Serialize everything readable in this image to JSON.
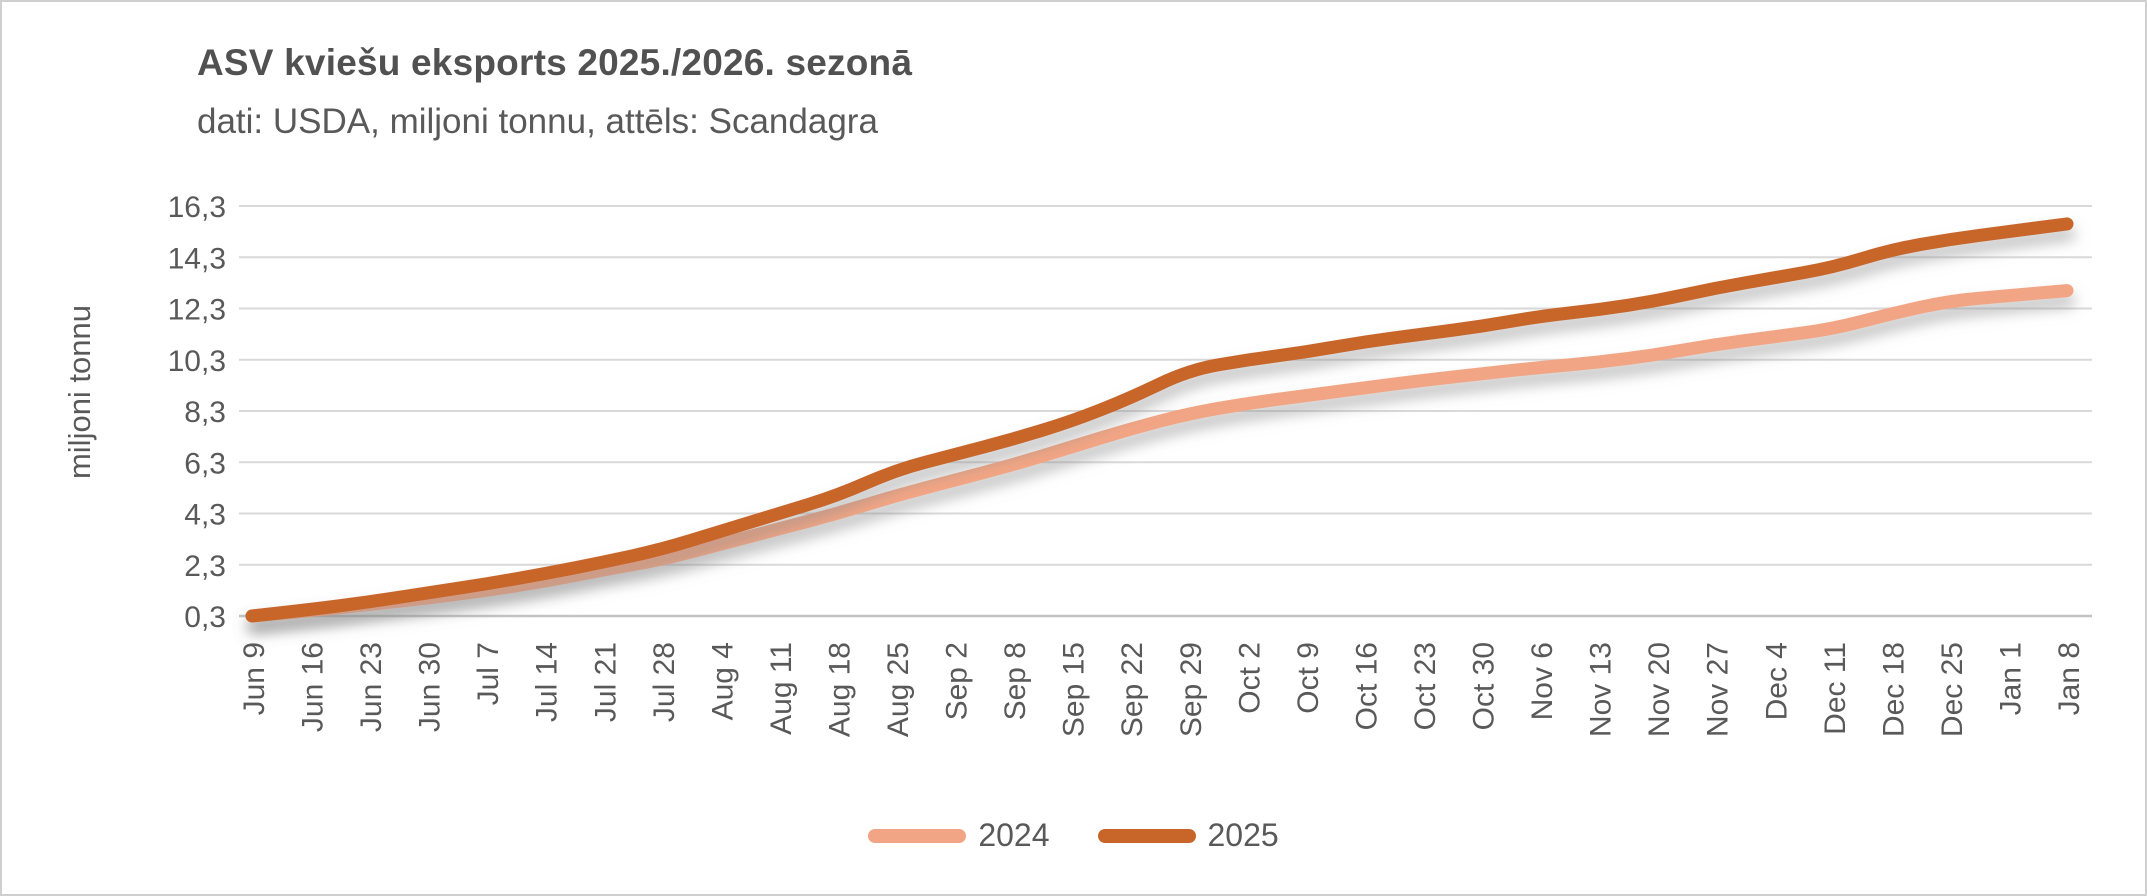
{
  "page": {
    "background_color": "#ffffff",
    "border_color": "#cfcfcf"
  },
  "chart": {
    "title": "ASV kviešu eksports 2025./2026. sezonā",
    "subtitle": "dati: USDA, miljoni tonnu, attēls: Scandagra",
    "text_color": "#595959",
    "gridline_color": "#d9d9d9",
    "axis_line_color": "#c3c3c3"
  },
  "chart_data": {
    "type": "line",
    "title": "ASV kviešu eksports 2025./2026. sezonā",
    "subtitle": "dati: USDA, miljoni tonnu, attēls: Scandagra",
    "xlabel": "",
    "ylabel": "miljoni tonnu",
    "ylim": [
      0.3,
      16.3
    ],
    "y_ticks": [
      0.3,
      2.3,
      4.3,
      6.3,
      8.3,
      10.3,
      12.3,
      14.3,
      16.3
    ],
    "y_tick_labels": [
      "0,3",
      "2,3",
      "4,3",
      "6,3",
      "8,3",
      "10,3",
      "12,3",
      "14,3",
      "16,3"
    ],
    "grid": "horizontal",
    "legend_position": "bottom-center",
    "smooth": true,
    "categories": [
      "Jun 9",
      "Jun 16",
      "Jun 23",
      "Jun 30",
      "Jul 7",
      "Jul 14",
      "Jul 21",
      "Jul 28",
      "Aug 4",
      "Aug 11",
      "Aug 18",
      "Aug 25",
      "Sep 2",
      "Sep 8",
      "Sep 15",
      "Sep 22",
      "Sep 29",
      "Oct 2",
      "Oct 9",
      "Oct 16",
      "Oct 23",
      "Oct 30",
      "Nov 6",
      "Nov 13",
      "Nov 20",
      "Nov 27",
      "Dec 4",
      "Dec 11",
      "Dec 18",
      "Dec 25",
      "Jan 1",
      "Jan 8"
    ],
    "series": [
      {
        "name": "2024",
        "color": "#F2A584",
        "values": [
          0.3,
          0.5,
          0.75,
          1.0,
          1.3,
          1.65,
          2.1,
          2.5,
          3.1,
          3.7,
          4.3,
          5.0,
          5.6,
          6.2,
          6.9,
          7.6,
          8.2,
          8.6,
          8.9,
          9.2,
          9.5,
          9.75,
          10.0,
          10.2,
          10.5,
          10.9,
          11.2,
          11.5,
          12.1,
          12.6,
          12.8,
          13.0
        ]
      },
      {
        "name": "2025",
        "color": "#C8662A",
        "values": [
          0.3,
          0.55,
          0.85,
          1.2,
          1.55,
          1.95,
          2.4,
          2.9,
          3.6,
          4.3,
          5.0,
          6.0,
          6.6,
          7.2,
          7.9,
          8.8,
          9.9,
          10.3,
          10.6,
          11.0,
          11.3,
          11.6,
          12.0,
          12.25,
          12.6,
          13.1,
          13.5,
          13.9,
          14.6,
          15.0,
          15.3,
          15.6
        ]
      }
    ]
  }
}
